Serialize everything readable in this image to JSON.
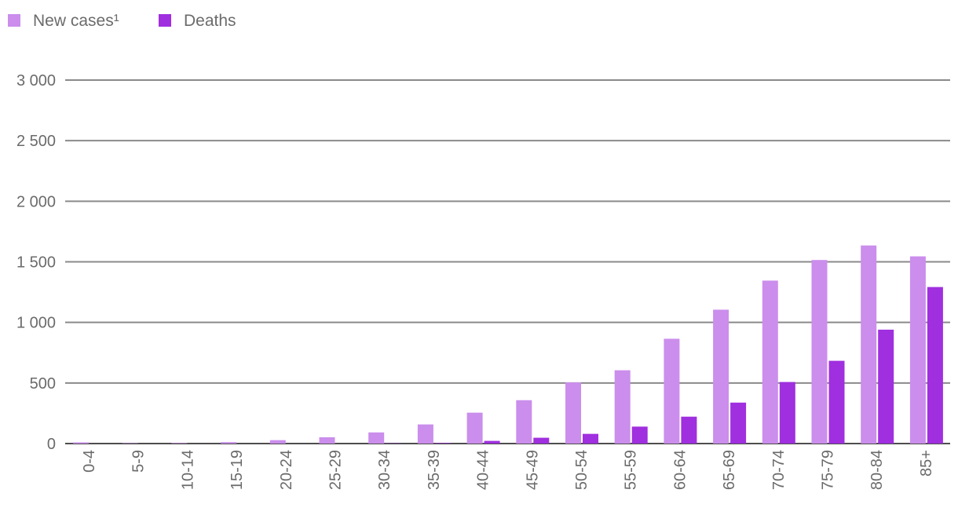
{
  "chart_data": {
    "type": "bar",
    "title": "",
    "xlabel": "",
    "ylabel": "",
    "categories": [
      "0-4",
      "5-9",
      "10-14",
      "15-19",
      "20-24",
      "25-29",
      "30-34",
      "35-39",
      "40-44",
      "45-49",
      "50-54",
      "55-59",
      "60-64",
      "65-69",
      "70-74",
      "75-79",
      "80-84",
      "85+"
    ],
    "series": [
      {
        "name": "New cases¹",
        "color": "#cb8eec",
        "values": [
          10,
          3,
          4,
          12,
          28,
          52,
          92,
          158,
          255,
          358,
          505,
          605,
          865,
          1105,
          1345,
          1515,
          1635,
          1545
        ]
      },
      {
        "name": "Deaths",
        "color": "#a02fdf",
        "values": [
          0,
          0,
          0,
          0,
          0,
          0,
          2,
          4,
          22,
          48,
          80,
          140,
          222,
          338,
          508,
          683,
          940,
          1292
        ]
      }
    ],
    "ylim": [
      0,
      3000
    ],
    "yticks": [
      0,
      500,
      1000,
      1500,
      2000,
      2500,
      3000
    ],
    "ytick_labels": [
      "0",
      "500",
      "1 000",
      "1 500",
      "2 000",
      "2 500",
      "3 000"
    ],
    "grid": true,
    "legend_position": "top-left",
    "x_tick_rotation": "vertical"
  }
}
